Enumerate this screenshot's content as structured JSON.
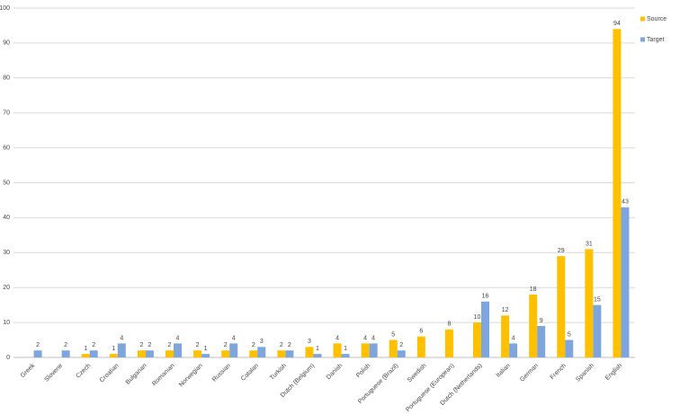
{
  "chart_data": {
    "type": "bar",
    "categories": [
      "Greek",
      "Slovene",
      "Czech",
      "Croatian",
      "Bulgarian",
      "Romanian",
      "Norwegian",
      "Russian",
      "Catalan",
      "Turkish",
      "Dutch (Belgium)",
      "Danish",
      "Polish",
      "Portuguese (Brazil)",
      "Swedish",
      "Portuguese (European)",
      "Dutch (Netherlands)",
      "Italian",
      "German",
      "French",
      "Spanish",
      "English"
    ],
    "series": [
      {
        "name": "Source",
        "color": "#ffc000",
        "values": [
          null,
          null,
          1,
          1,
          2,
          2,
          2,
          2,
          2,
          2,
          3,
          4,
          4,
          5,
          6,
          8,
          10,
          12,
          18,
          29,
          31,
          94
        ]
      },
      {
        "name": "Target",
        "color": "#7ea6dc",
        "values": [
          2,
          2,
          2,
          4,
          2,
          4,
          1,
          4,
          3,
          2,
          1,
          1,
          4,
          2,
          null,
          null,
          16,
          4,
          9,
          5,
          15,
          43
        ]
      }
    ],
    "ylim": [
      0,
      100
    ],
    "yticks": [
      0,
      10,
      20,
      30,
      40,
      50,
      60,
      70,
      80,
      90,
      100
    ],
    "grid": true,
    "legend": "right"
  }
}
